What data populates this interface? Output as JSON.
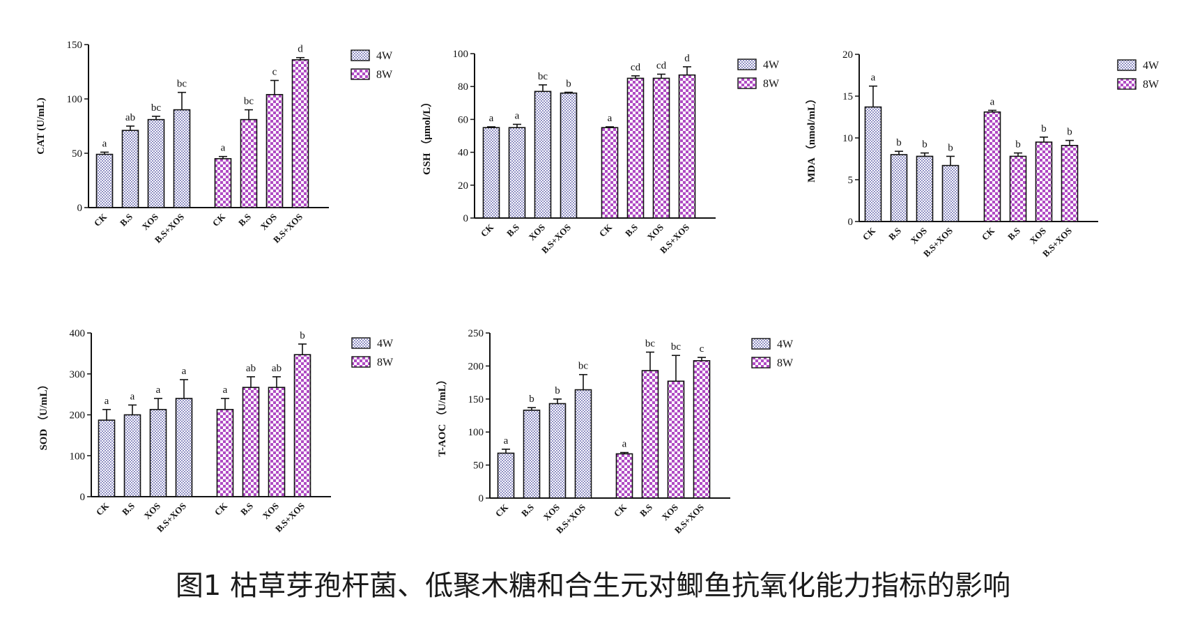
{
  "caption": "图1 枯草芽孢杆菌、低聚木糖和合生元对鲫鱼抗氧化能力指标的影响",
  "colors": {
    "series_4w": "#8f8fc4",
    "series_8w": "#b04bc4",
    "axis": "#111111"
  },
  "chart_data": [
    {
      "type": "bar",
      "ylabel": "CAT (U/mL)",
      "ylim": [
        0,
        150
      ],
      "yticks": [
        0,
        50,
        100,
        150
      ],
      "legend": [
        "4W",
        "8W"
      ],
      "categories": [
        "CK",
        "B.S",
        "XOS",
        "B.S+XOS"
      ],
      "series": [
        {
          "name": "4W",
          "values": [
            49,
            71,
            81,
            90
          ],
          "errors": [
            2,
            4,
            3,
            16
          ],
          "letters": [
            "a",
            "ab",
            "bc",
            "bc"
          ]
        },
        {
          "name": "8W",
          "values": [
            45,
            81,
            104,
            136
          ],
          "errors": [
            2,
            9,
            13,
            2
          ],
          "letters": [
            "a",
            "bc",
            "c",
            "d"
          ]
        }
      ]
    },
    {
      "type": "bar",
      "ylabel": "GSH （μmol/L）",
      "ylim": [
        0,
        100
      ],
      "yticks": [
        0,
        20,
        40,
        60,
        80,
        100
      ],
      "legend": [
        "4W",
        "8W"
      ],
      "categories": [
        "CK",
        "B.S",
        "XOS",
        "B.S+XOS"
      ],
      "series": [
        {
          "name": "4W",
          "values": [
            55,
            55,
            77,
            76
          ],
          "errors": [
            0.5,
            2,
            4,
            0.5
          ],
          "letters": [
            "a",
            "a",
            "bc",
            "b"
          ]
        },
        {
          "name": "8W",
          "values": [
            55,
            85,
            85,
            87
          ],
          "errors": [
            0.5,
            1.5,
            2.5,
            5
          ],
          "letters": [
            "a",
            "cd",
            "cd",
            "d"
          ]
        }
      ]
    },
    {
      "type": "bar",
      "ylabel": "MDA （nmol/mL）",
      "ylim": [
        0,
        20
      ],
      "yticks": [
        0,
        5,
        10,
        15,
        20
      ],
      "legend": [
        "4W",
        "8W"
      ],
      "categories": [
        "CK",
        "B.S",
        "XOS",
        "B.S+XOS"
      ],
      "series": [
        {
          "name": "4W",
          "values": [
            13.7,
            8.0,
            7.8,
            6.7
          ],
          "errors": [
            2.5,
            0.4,
            0.4,
            1.1
          ],
          "letters": [
            "a",
            "b",
            "b",
            "b"
          ]
        },
        {
          "name": "8W",
          "values": [
            13.1,
            7.8,
            9.5,
            9.1
          ],
          "errors": [
            0.2,
            0.4,
            0.6,
            0.6
          ],
          "letters": [
            "a",
            "b",
            "b",
            "b"
          ]
        }
      ]
    },
    {
      "type": "bar",
      "ylabel": "SOD （U/mL）",
      "ylim": [
        0,
        400
      ],
      "yticks": [
        0,
        100,
        200,
        300,
        400
      ],
      "legend": [
        "4W",
        "8W"
      ],
      "categories": [
        "CK",
        "B.S",
        "XOS",
        "B.S+XOS"
      ],
      "series": [
        {
          "name": "4W",
          "values": [
            187,
            200,
            213,
            240
          ],
          "errors": [
            26,
            24,
            27,
            46
          ],
          "letters": [
            "a",
            "a",
            "a",
            "a"
          ]
        },
        {
          "name": "8W",
          "values": [
            213,
            267,
            267,
            347
          ],
          "errors": [
            27,
            26,
            26,
            26
          ],
          "letters": [
            "a",
            "ab",
            "ab",
            "b"
          ]
        }
      ]
    },
    {
      "type": "bar",
      "ylabel": "T-AOC （U/mL）",
      "ylim": [
        0,
        250
      ],
      "yticks": [
        0,
        50,
        100,
        150,
        200,
        250
      ],
      "legend": [
        "4W",
        "8W"
      ],
      "categories": [
        "CK",
        "B.S",
        "XOS",
        "B.S+XOS"
      ],
      "series": [
        {
          "name": "4W",
          "values": [
            68,
            133,
            143,
            164
          ],
          "errors": [
            6,
            4,
            7,
            23
          ],
          "letters": [
            "a",
            "b",
            "b",
            "bc"
          ]
        },
        {
          "name": "8W",
          "values": [
            67,
            193,
            177,
            208
          ],
          "errors": [
            2,
            28,
            39,
            5
          ],
          "letters": [
            "a",
            "bc",
            "bc",
            "c"
          ]
        }
      ]
    }
  ]
}
